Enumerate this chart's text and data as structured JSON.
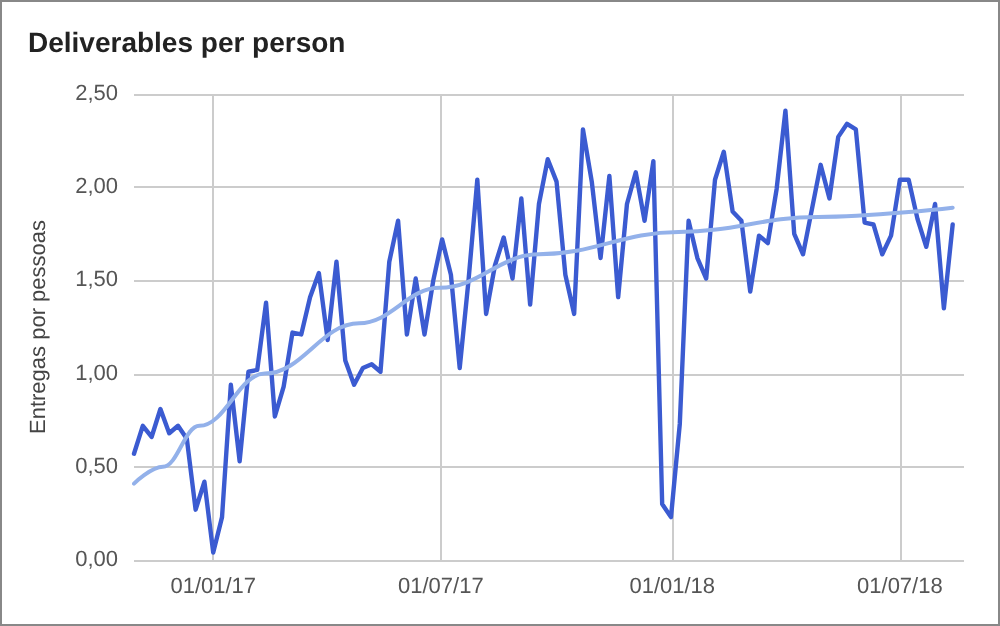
{
  "chart_data": {
    "type": "line",
    "title": "Deliverables per person",
    "ylabel": "Entregas por pessoas",
    "x": [
      "2016-10-30",
      "2016-11-06",
      "2016-11-13",
      "2016-11-20",
      "2016-11-27",
      "2016-12-04",
      "2016-12-11",
      "2016-12-18",
      "2016-12-25",
      "2017-01-01",
      "2017-01-08",
      "2017-01-15",
      "2017-01-22",
      "2017-01-29",
      "2017-02-05",
      "2017-02-12",
      "2017-02-19",
      "2017-02-26",
      "2017-03-05",
      "2017-03-12",
      "2017-03-19",
      "2017-03-26",
      "2017-04-02",
      "2017-04-09",
      "2017-04-16",
      "2017-04-23",
      "2017-04-30",
      "2017-05-07",
      "2017-05-14",
      "2017-05-21",
      "2017-05-28",
      "2017-06-04",
      "2017-06-11",
      "2017-06-18",
      "2017-06-25",
      "2017-07-02",
      "2017-07-09",
      "2017-07-16",
      "2017-07-23",
      "2017-07-30",
      "2017-08-06",
      "2017-08-13",
      "2017-08-20",
      "2017-08-27",
      "2017-09-03",
      "2017-09-10",
      "2017-09-17",
      "2017-09-24",
      "2017-10-01",
      "2017-10-08",
      "2017-10-15",
      "2017-10-22",
      "2017-10-29",
      "2017-11-05",
      "2017-11-12",
      "2017-11-19",
      "2017-11-26",
      "2017-12-03",
      "2017-12-10",
      "2017-12-17",
      "2017-12-24",
      "2017-12-31",
      "2018-01-07",
      "2018-01-14",
      "2018-01-21",
      "2018-01-28",
      "2018-02-04",
      "2018-02-11",
      "2018-02-18",
      "2018-02-25",
      "2018-03-04",
      "2018-03-11",
      "2018-03-18",
      "2018-03-25",
      "2018-04-01",
      "2018-04-08",
      "2018-04-15",
      "2018-04-22",
      "2018-04-29",
      "2018-05-06",
      "2018-05-13",
      "2018-05-20",
      "2018-05-27",
      "2018-06-03",
      "2018-06-10",
      "2018-06-17",
      "2018-06-24",
      "2018-07-01",
      "2018-07-08",
      "2018-07-15",
      "2018-07-22",
      "2018-07-29",
      "2018-08-05",
      "2018-08-12"
    ],
    "series": [
      {
        "color": "#3b5bd1",
        "values": [
          0.57,
          0.72,
          0.66,
          0.81,
          0.68,
          0.72,
          0.65,
          0.27,
          0.42,
          0.04,
          0.23,
          0.94,
          0.53,
          1.01,
          1.02,
          1.38,
          0.77,
          0.93,
          1.22,
          1.21,
          1.41,
          1.54,
          1.18,
          1.6,
          1.07,
          0.94,
          1.03,
          1.05,
          1.01,
          1.6,
          1.82,
          1.21,
          1.51,
          1.21,
          1.5,
          1.72,
          1.53,
          1.03,
          1.5,
          2.04,
          1.32,
          1.58,
          1.73,
          1.51,
          1.94,
          1.37,
          1.91,
          2.15,
          2.03,
          1.53,
          1.32,
          2.31,
          2.03,
          1.62,
          2.06,
          1.41,
          1.91,
          2.08,
          1.82,
          2.14,
          0.3,
          0.23,
          0.73,
          1.82,
          1.62,
          1.51,
          2.04,
          2.19,
          1.87,
          1.82,
          1.44,
          1.74,
          1.7,
          1.99,
          2.41,
          1.75,
          1.64,
          1.88,
          2.12,
          1.94,
          2.27,
          2.34,
          2.31,
          1.81,
          1.8,
          1.64,
          1.74,
          2.04,
          2.04,
          1.83,
          1.68,
          1.91,
          1.35,
          1.8
        ]
      },
      {
        "type": "line",
        "color": "#93b1ea",
        "x": [
          "2016-10-30",
          "2016-11-22",
          "2016-12-21",
          "2017-02-11",
          "2017-04-27",
          "2017-06-30",
          "2017-09-17",
          "2018-01-06",
          "2018-04-27",
          "2018-08-12"
        ],
        "values": [
          0.41,
          0.5,
          0.72,
          1.0,
          1.27,
          1.46,
          1.64,
          1.76,
          1.84,
          1.89
        ]
      }
    ],
    "xlim": [
      "2016-10-30",
      "2018-08-21"
    ],
    "xticks": [
      {
        "value": "2017-01-01",
        "label": "01/01/17"
      },
      {
        "value": "2017-07-01",
        "label": "01/07/17"
      },
      {
        "value": "2018-01-01",
        "label": "01/01/18"
      },
      {
        "value": "2018-07-01",
        "label": "01/07/18"
      }
    ],
    "ylim": [
      0,
      2.5
    ],
    "yticks": [
      {
        "value": 0,
        "label": "0,00"
      },
      {
        "value": 0.5,
        "label": "0,50"
      },
      {
        "value": 1,
        "label": "1,00"
      },
      {
        "value": 1.5,
        "label": "1,50"
      },
      {
        "value": 2,
        "label": "2,00"
      },
      {
        "value": 2.5,
        "label": "2,50"
      }
    ],
    "grid": true,
    "marker": "none",
    "line_style": "solid"
  }
}
